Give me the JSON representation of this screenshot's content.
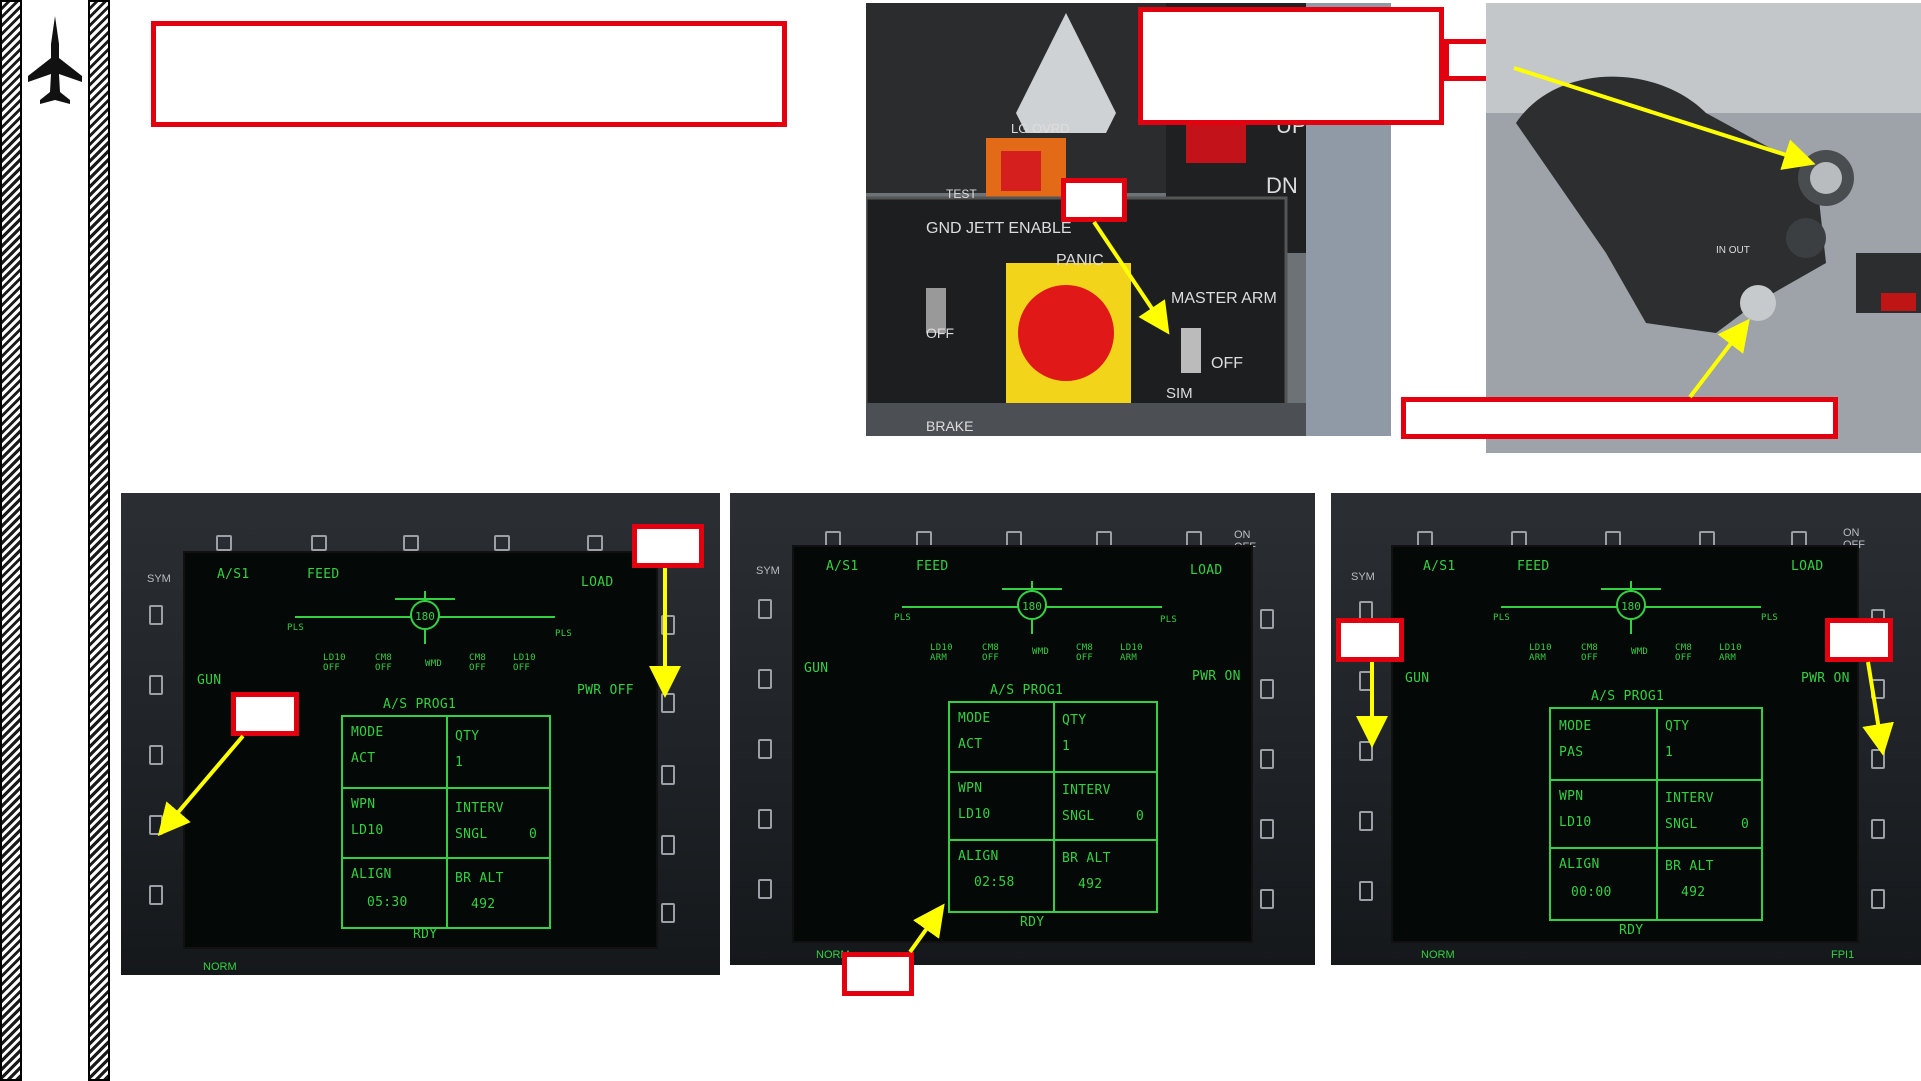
{
  "photo_top_left": {
    "labels": {
      "lg_ovrd": "LG OVRD",
      "test": "TEST",
      "up": "UP",
      "dn": "DN",
      "gnd_jett_enable": "GND  JETT\nENABLE",
      "off_left": "OFF",
      "panic": "PANIC",
      "master_arm": "MASTER\nARM",
      "off": "OFF",
      "sim": "SIM",
      "brake": "BRAKE"
    }
  },
  "photo_top_right": {
    "labels": {
      "in_out": "IN OUT"
    }
  },
  "mfds": [
    {
      "top": {
        "a_s1": "A/S1",
        "feed": "FEED",
        "load": "LOAD",
        "sym": "SYM"
      },
      "heading": "180",
      "stations": [
        "PLS",
        "LD10\nOFF",
        "CM8\nOFF",
        "WMD",
        "CM8\nOFF",
        "LD10\nOFF",
        "PLS"
      ],
      "gun": "GUN",
      "pwr": "PWR OFF",
      "prog_title": "A/S PROG1",
      "table": {
        "mode_label": "MODE",
        "mode": "ACT",
        "qty_label": "QTY",
        "qty": "1",
        "wpn_label": "WPN",
        "wpn": "LD10",
        "interv_label": "INTERV",
        "interv": "SNGL",
        "interv_val": "0",
        "align_label": "ALIGN",
        "align": "05:30",
        "bralt_label": "BR ALT",
        "bralt": "492"
      },
      "status": "RDY",
      "norm": "NORM"
    },
    {
      "top": {
        "a_s1": "A/S1",
        "feed": "FEED",
        "load": "LOAD",
        "sym": "SYM",
        "on_off": "ON\nOFF"
      },
      "heading": "180",
      "stations": [
        "PLS",
        "LD10\nARM",
        "CM8\nOFF",
        "WMD",
        "CM8\nOFF",
        "LD10\nARM",
        "PLS"
      ],
      "gun": "GUN",
      "pwr": "PWR ON",
      "prog_title": "A/S PROG1",
      "table": {
        "mode_label": "MODE",
        "mode": "ACT",
        "qty_label": "QTY",
        "qty": "1",
        "wpn_label": "WPN",
        "wpn": "LD10",
        "interv_label": "INTERV",
        "interv": "SNGL",
        "interv_val": "0",
        "align_label": "ALIGN",
        "align": "02:58",
        "bralt_label": "BR ALT",
        "bralt": "492"
      },
      "status": "RDY",
      "norm": "NORM"
    },
    {
      "top": {
        "a_s1": "A/S1",
        "feed": "FEED",
        "load": "LOAD",
        "sym": "SYM",
        "on_off": "ON\nOFF"
      },
      "heading": "180",
      "stations": [
        "PLS",
        "LD10\nARM",
        "CM8\nOFF",
        "WMD",
        "CM8\nOFF",
        "LD10\nARM",
        "PLS"
      ],
      "gun": "GUN",
      "pwr": "PWR ON",
      "prog_title": "A/S PROG1",
      "table": {
        "mode_label": "MODE",
        "mode": "PAS",
        "qty_label": "QTY",
        "qty": "1",
        "wpn_label": "WPN",
        "wpn": "LD10",
        "interv_label": "INTERV",
        "interv": "SNGL",
        "interv_val": "0",
        "align_label": "ALIGN",
        "align": "00:00",
        "bralt_label": "BR ALT",
        "bralt": "492"
      },
      "status": "RDY",
      "norm": "NORM",
      "fpi": "FPI1"
    }
  ],
  "colors": {
    "callout": "#e3000f",
    "arrow": "#ffff00",
    "display_green": "#33d141"
  }
}
